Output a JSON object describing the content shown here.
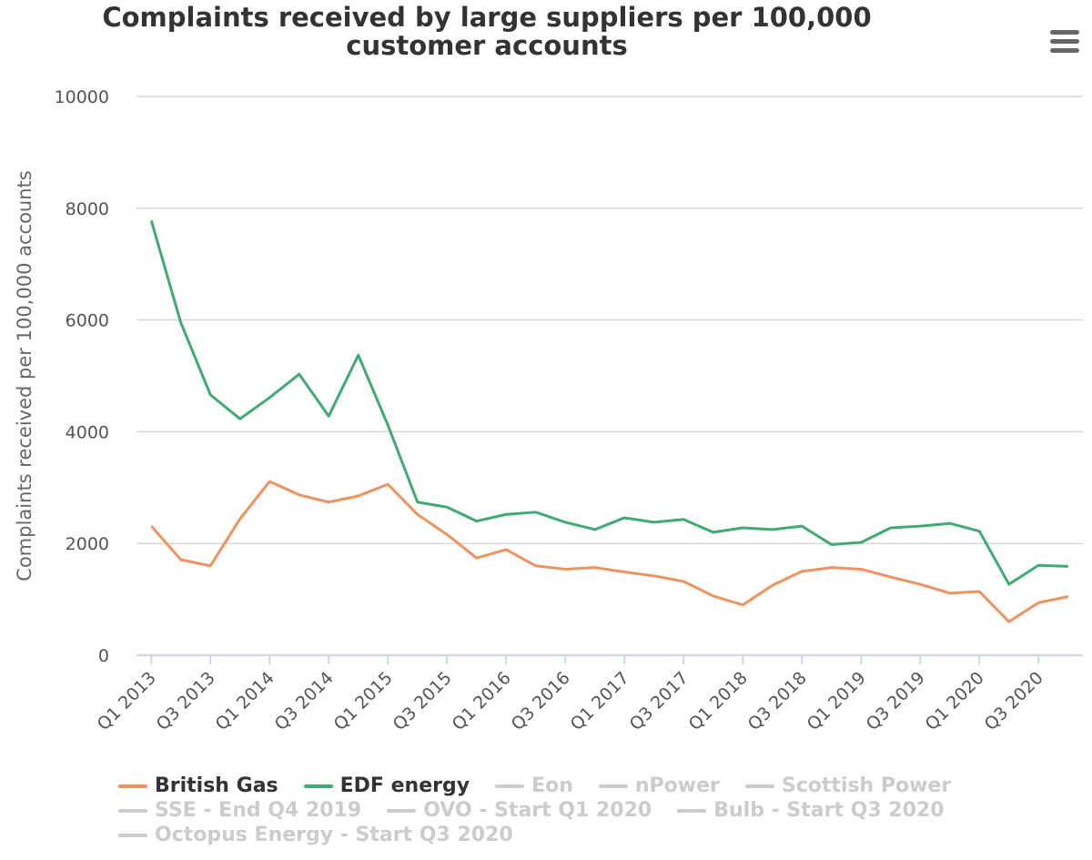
{
  "chart_data": {
    "type": "line",
    "title": "Complaints received by large suppliers per 100,000 customer accounts",
    "y_label": "Complaints received per 100,000 accounts",
    "categories": [
      "Q1 2013",
      null,
      "Q3 2013",
      null,
      "Q1 2014",
      null,
      "Q3 2014",
      null,
      "Q1 2015",
      null,
      "Q3 2015",
      null,
      "Q1 2016",
      null,
      "Q3 2016",
      null,
      "Q1 2017",
      null,
      "Q3 2017",
      null,
      "Q1 2018",
      null,
      "Q3 2018",
      null,
      "Q1 2019",
      null,
      "Q3 2019",
      null,
      "Q1 2020",
      null,
      "Q3 2020",
      null
    ],
    "series": [
      {
        "name": "British Gas",
        "color": "#ee9260",
        "values": [
          2310,
          1710,
          1600,
          2440,
          3110,
          2870,
          2740,
          2850,
          3060,
          2520,
          2160,
          1740,
          1890,
          1600,
          1540,
          1570,
          1490,
          1420,
          1320,
          1060,
          900,
          1250,
          1500,
          1570,
          1540,
          1400,
          1270,
          1110,
          1140,
          600,
          940,
          1050
        ]
      },
      {
        "name": "EDF energy",
        "color": "#3fab73",
        "values": [
          7780,
          5950,
          4660,
          4230,
          4610,
          5030,
          4280,
          5370,
          4120,
          2740,
          2650,
          2400,
          2520,
          2560,
          2380,
          2250,
          2460,
          2380,
          2430,
          2200,
          2280,
          2250,
          2310,
          1980,
          2020,
          2280,
          2310,
          2360,
          2220,
          1270,
          1610,
          1590
        ]
      },
      {
        "name": "Eon",
        "color": "#cccccc",
        "visible": false
      },
      {
        "name": "nPower",
        "color": "#cccccc",
        "visible": false
      },
      {
        "name": "Scottish Power",
        "color": "#cccccc",
        "visible": false
      },
      {
        "name": "SSE - End Q4 2019",
        "color": "#cccccc",
        "visible": false
      },
      {
        "name": "OVO - Start Q1 2020",
        "color": "#cccccc",
        "visible": false
      },
      {
        "name": "Bulb - Start Q3 2020",
        "color": "#cccccc",
        "visible": false
      },
      {
        "name": "Octopus Energy - Start Q3 2020",
        "color": "#cccccc",
        "visible": false
      }
    ],
    "ylim": [
      0,
      10000
    ],
    "yticks": [
      0,
      2000,
      4000,
      6000,
      8000,
      10000
    ],
    "grid": true,
    "legend": "bottom"
  }
}
